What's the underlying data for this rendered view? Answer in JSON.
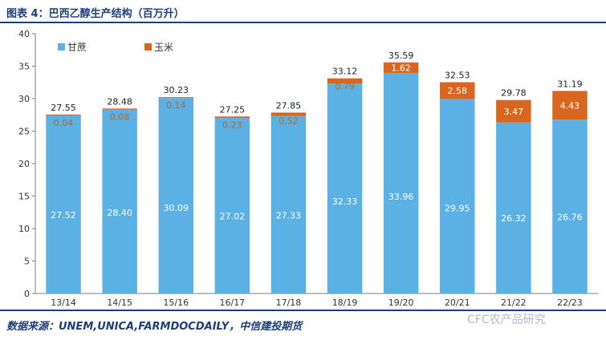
{
  "header": {
    "title": "图表 4：巴西乙醇生产结构（百万升）"
  },
  "footer": {
    "source": "数据来源：UNEM,UNICA,FARMDOCDAILY，中信建投期货"
  },
  "watermark": {
    "text": "CFC农产品研究"
  },
  "colors": {
    "cane": "#5bb0e4",
    "corn": "#d9661f",
    "axis": "#7f7f7f",
    "rule": "#1f3f7a"
  },
  "chart_data": {
    "type": "bar",
    "stacked": true,
    "categories": [
      "13/14",
      "14/15",
      "15/16",
      "16/17",
      "17/18",
      "18/19",
      "19/20",
      "20/21",
      "21/22",
      "22/23"
    ],
    "series": [
      {
        "name": "甘蔗",
        "values": [
          27.52,
          28.4,
          30.09,
          27.02,
          27.33,
          32.33,
          33.96,
          29.95,
          26.32,
          26.76
        ]
      },
      {
        "name": "玉米",
        "values": [
          0.04,
          0.08,
          0.14,
          0.23,
          0.52,
          0.79,
          1.62,
          2.58,
          3.47,
          4.43
        ]
      }
    ],
    "totals": [
      27.55,
      28.48,
      30.23,
      27.25,
      27.85,
      33.12,
      35.59,
      32.53,
      29.78,
      31.19
    ],
    "cane_labels": [
      "27.52",
      "28.40",
      "30.09",
      "27.02",
      "27.33",
      "32.33",
      "33.96",
      "29.95",
      "26.32",
      "26.76"
    ],
    "corn_labels": [
      "0.04",
      "0.08",
      "0.14",
      "0.23",
      "0.52",
      "0.79",
      "1.62",
      "2.58",
      "3.47",
      "4.43"
    ],
    "total_labels": [
      "27.55",
      "28.48",
      "30.23",
      "27.25",
      "27.85",
      "33.12",
      "35.59",
      "32.53",
      "29.78",
      "31.19"
    ],
    "yticks": [
      "0",
      "5",
      "10",
      "15",
      "20",
      "25",
      "30",
      "35",
      "40"
    ],
    "ylim": [
      0,
      40
    ],
    "legend_position": "top-left",
    "grid": false
  }
}
